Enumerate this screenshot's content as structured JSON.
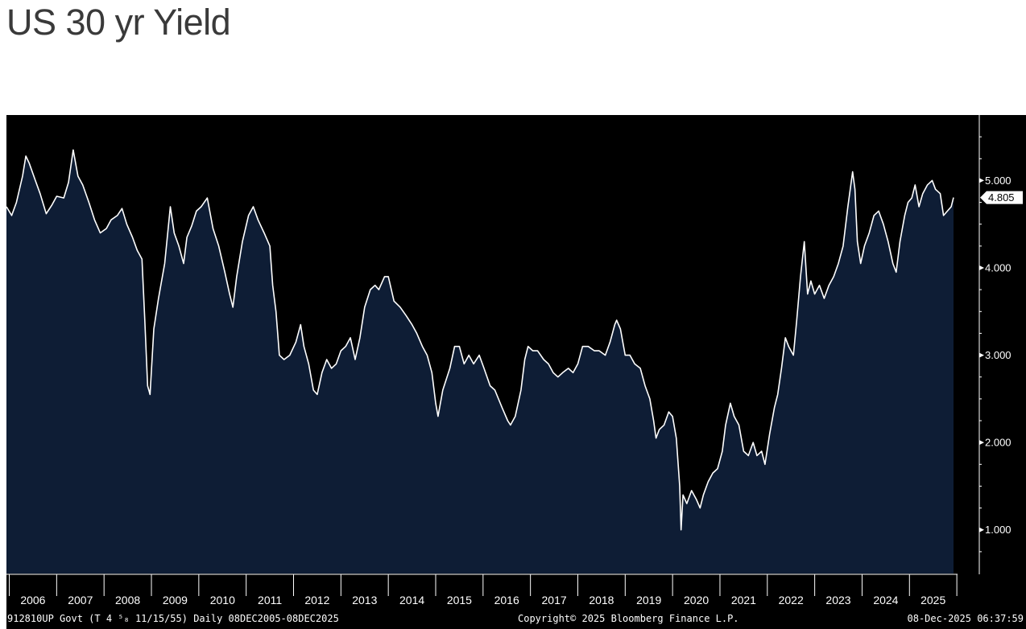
{
  "title": "US 30 yr Yield",
  "footer": {
    "security": "912810UP Govt (T 4 ⁵₈ 11/15/55) Daily 08DEC2005-08DEC2025",
    "copyright": "Copyright© 2025 Bloomberg Finance L.P.",
    "timestamp": "08-Dec-2025 06:37:59"
  },
  "colors": {
    "fill": "#0e1d35",
    "line": "#ffffff",
    "background": "#000000"
  },
  "chart_data": {
    "type": "area",
    "title": "US 30 yr Yield",
    "xlabel": "",
    "ylabel": "",
    "xlim": [
      2005.94,
      2025.93
    ],
    "ylim": [
      0.5,
      5.75
    ],
    "y_ticks": [
      "1.000",
      "2.000",
      "3.000",
      "4.000",
      "5.000"
    ],
    "y_tick_values": [
      1,
      2,
      3,
      4,
      5
    ],
    "x_tick_labels": [
      "2006",
      "2007",
      "2008",
      "2009",
      "2010",
      "2011",
      "2012",
      "2013",
      "2014",
      "2015",
      "2016",
      "2017",
      "2018",
      "2019",
      "2020",
      "2021",
      "2022",
      "2023",
      "2024",
      "2025"
    ],
    "last_value": "4.805",
    "series": [
      {
        "name": "US 30 yr Yield",
        "points": [
          [
            2005.94,
            4.7
          ],
          [
            2006.05,
            4.6
          ],
          [
            2006.15,
            4.75
          ],
          [
            2006.28,
            5.05
          ],
          [
            2006.35,
            5.28
          ],
          [
            2006.42,
            5.2
          ],
          [
            2006.55,
            5.0
          ],
          [
            2006.65,
            4.85
          ],
          [
            2006.78,
            4.62
          ],
          [
            2006.9,
            4.72
          ],
          [
            2007.0,
            4.82
          ],
          [
            2007.15,
            4.8
          ],
          [
            2007.25,
            4.98
          ],
          [
            2007.35,
            5.35
          ],
          [
            2007.45,
            5.05
          ],
          [
            2007.55,
            4.95
          ],
          [
            2007.68,
            4.75
          ],
          [
            2007.8,
            4.55
          ],
          [
            2007.92,
            4.4
          ],
          [
            2008.05,
            4.45
          ],
          [
            2008.15,
            4.55
          ],
          [
            2008.28,
            4.6
          ],
          [
            2008.38,
            4.68
          ],
          [
            2008.48,
            4.5
          ],
          [
            2008.6,
            4.35
          ],
          [
            2008.7,
            4.2
          ],
          [
            2008.8,
            4.1
          ],
          [
            2008.86,
            3.4
          ],
          [
            2008.92,
            2.65
          ],
          [
            2008.97,
            2.55
          ],
          [
            2009.05,
            3.3
          ],
          [
            2009.15,
            3.65
          ],
          [
            2009.28,
            4.05
          ],
          [
            2009.4,
            4.7
          ],
          [
            2009.48,
            4.4
          ],
          [
            2009.58,
            4.25
          ],
          [
            2009.68,
            4.05
          ],
          [
            2009.75,
            4.35
          ],
          [
            2009.85,
            4.48
          ],
          [
            2009.95,
            4.65
          ],
          [
            2010.05,
            4.7
          ],
          [
            2010.18,
            4.8
          ],
          [
            2010.3,
            4.45
          ],
          [
            2010.42,
            4.25
          ],
          [
            2010.55,
            3.95
          ],
          [
            2010.65,
            3.7
          ],
          [
            2010.72,
            3.55
          ],
          [
            2010.8,
            3.9
          ],
          [
            2010.92,
            4.3
          ],
          [
            2011.05,
            4.6
          ],
          [
            2011.15,
            4.7
          ],
          [
            2011.25,
            4.55
          ],
          [
            2011.38,
            4.4
          ],
          [
            2011.5,
            4.25
          ],
          [
            2011.56,
            3.8
          ],
          [
            2011.63,
            3.5
          ],
          [
            2011.7,
            3.0
          ],
          [
            2011.8,
            2.95
          ],
          [
            2011.92,
            3.0
          ],
          [
            2012.05,
            3.15
          ],
          [
            2012.15,
            3.35
          ],
          [
            2012.22,
            3.1
          ],
          [
            2012.32,
            2.9
          ],
          [
            2012.42,
            2.6
          ],
          [
            2012.5,
            2.55
          ],
          [
            2012.6,
            2.8
          ],
          [
            2012.7,
            2.95
          ],
          [
            2012.8,
            2.85
          ],
          [
            2012.9,
            2.9
          ],
          [
            2013.0,
            3.05
          ],
          [
            2013.1,
            3.1
          ],
          [
            2013.2,
            3.2
          ],
          [
            2013.3,
            2.95
          ],
          [
            2013.4,
            3.2
          ],
          [
            2013.5,
            3.55
          ],
          [
            2013.62,
            3.75
          ],
          [
            2013.72,
            3.8
          ],
          [
            2013.8,
            3.75
          ],
          [
            2013.92,
            3.9
          ],
          [
            2014.0,
            3.9
          ],
          [
            2014.12,
            3.62
          ],
          [
            2014.25,
            3.55
          ],
          [
            2014.38,
            3.45
          ],
          [
            2014.5,
            3.35
          ],
          [
            2014.6,
            3.25
          ],
          [
            2014.72,
            3.1
          ],
          [
            2014.82,
            3.0
          ],
          [
            2014.92,
            2.8
          ],
          [
            2015.0,
            2.45
          ],
          [
            2015.05,
            2.3
          ],
          [
            2015.15,
            2.6
          ],
          [
            2015.3,
            2.85
          ],
          [
            2015.4,
            3.1
          ],
          [
            2015.5,
            3.1
          ],
          [
            2015.6,
            2.9
          ],
          [
            2015.7,
            3.0
          ],
          [
            2015.8,
            2.9
          ],
          [
            2015.92,
            3.0
          ],
          [
            2016.02,
            2.85
          ],
          [
            2016.15,
            2.65
          ],
          [
            2016.25,
            2.6
          ],
          [
            2016.4,
            2.4
          ],
          [
            2016.52,
            2.25
          ],
          [
            2016.58,
            2.2
          ],
          [
            2016.68,
            2.3
          ],
          [
            2016.8,
            2.6
          ],
          [
            2016.88,
            2.95
          ],
          [
            2016.95,
            3.1
          ],
          [
            2017.05,
            3.05
          ],
          [
            2017.15,
            3.05
          ],
          [
            2017.28,
            2.95
          ],
          [
            2017.38,
            2.9
          ],
          [
            2017.48,
            2.8
          ],
          [
            2017.58,
            2.75
          ],
          [
            2017.68,
            2.8
          ],
          [
            2017.8,
            2.85
          ],
          [
            2017.9,
            2.8
          ],
          [
            2018.0,
            2.9
          ],
          [
            2018.1,
            3.1
          ],
          [
            2018.22,
            3.1
          ],
          [
            2018.35,
            3.05
          ],
          [
            2018.45,
            3.05
          ],
          [
            2018.58,
            3.0
          ],
          [
            2018.68,
            3.15
          ],
          [
            2018.78,
            3.35
          ],
          [
            2018.82,
            3.4
          ],
          [
            2018.9,
            3.3
          ],
          [
            2019.0,
            3.0
          ],
          [
            2019.1,
            3.0
          ],
          [
            2019.2,
            2.9
          ],
          [
            2019.32,
            2.85
          ],
          [
            2019.42,
            2.65
          ],
          [
            2019.52,
            2.5
          ],
          [
            2019.6,
            2.25
          ],
          [
            2019.65,
            2.05
          ],
          [
            2019.72,
            2.15
          ],
          [
            2019.82,
            2.2
          ],
          [
            2019.92,
            2.35
          ],
          [
            2020.0,
            2.3
          ],
          [
            2020.08,
            2.05
          ],
          [
            2020.15,
            1.5
          ],
          [
            2020.18,
            1.0
          ],
          [
            2020.22,
            1.4
          ],
          [
            2020.3,
            1.3
          ],
          [
            2020.4,
            1.45
          ],
          [
            2020.5,
            1.35
          ],
          [
            2020.58,
            1.25
          ],
          [
            2020.65,
            1.4
          ],
          [
            2020.75,
            1.55
          ],
          [
            2020.85,
            1.65
          ],
          [
            2020.95,
            1.7
          ],
          [
            2021.05,
            1.9
          ],
          [
            2021.12,
            2.2
          ],
          [
            2021.22,
            2.45
          ],
          [
            2021.3,
            2.3
          ],
          [
            2021.4,
            2.2
          ],
          [
            2021.5,
            1.9
          ],
          [
            2021.6,
            1.85
          ],
          [
            2021.7,
            2.0
          ],
          [
            2021.78,
            1.85
          ],
          [
            2021.88,
            1.9
          ],
          [
            2021.95,
            1.75
          ],
          [
            2022.05,
            2.1
          ],
          [
            2022.15,
            2.4
          ],
          [
            2022.22,
            2.55
          ],
          [
            2022.3,
            2.85
          ],
          [
            2022.38,
            3.2
          ],
          [
            2022.45,
            3.1
          ],
          [
            2022.55,
            3.0
          ],
          [
            2022.62,
            3.4
          ],
          [
            2022.7,
            3.9
          ],
          [
            2022.78,
            4.3
          ],
          [
            2022.85,
            3.7
          ],
          [
            2022.92,
            3.85
          ],
          [
            2023.0,
            3.7
          ],
          [
            2023.1,
            3.8
          ],
          [
            2023.2,
            3.65
          ],
          [
            2023.3,
            3.8
          ],
          [
            2023.4,
            3.9
          ],
          [
            2023.5,
            4.05
          ],
          [
            2023.6,
            4.25
          ],
          [
            2023.7,
            4.7
          ],
          [
            2023.8,
            5.1
          ],
          [
            2023.85,
            4.9
          ],
          [
            2023.9,
            4.3
          ],
          [
            2023.97,
            4.05
          ],
          [
            2024.05,
            4.25
          ],
          [
            2024.15,
            4.4
          ],
          [
            2024.25,
            4.6
          ],
          [
            2024.35,
            4.65
          ],
          [
            2024.45,
            4.5
          ],
          [
            2024.55,
            4.3
          ],
          [
            2024.65,
            4.05
          ],
          [
            2024.72,
            3.95
          ],
          [
            2024.8,
            4.3
          ],
          [
            2024.9,
            4.6
          ],
          [
            2024.97,
            4.75
          ],
          [
            2025.05,
            4.8
          ],
          [
            2025.12,
            4.95
          ],
          [
            2025.2,
            4.7
          ],
          [
            2025.28,
            4.85
          ],
          [
            2025.38,
            4.95
          ],
          [
            2025.48,
            5.0
          ],
          [
            2025.55,
            4.9
          ],
          [
            2025.65,
            4.85
          ],
          [
            2025.72,
            4.6
          ],
          [
            2025.8,
            4.65
          ],
          [
            2025.88,
            4.7
          ],
          [
            2025.93,
            4.805
          ]
        ]
      }
    ]
  }
}
